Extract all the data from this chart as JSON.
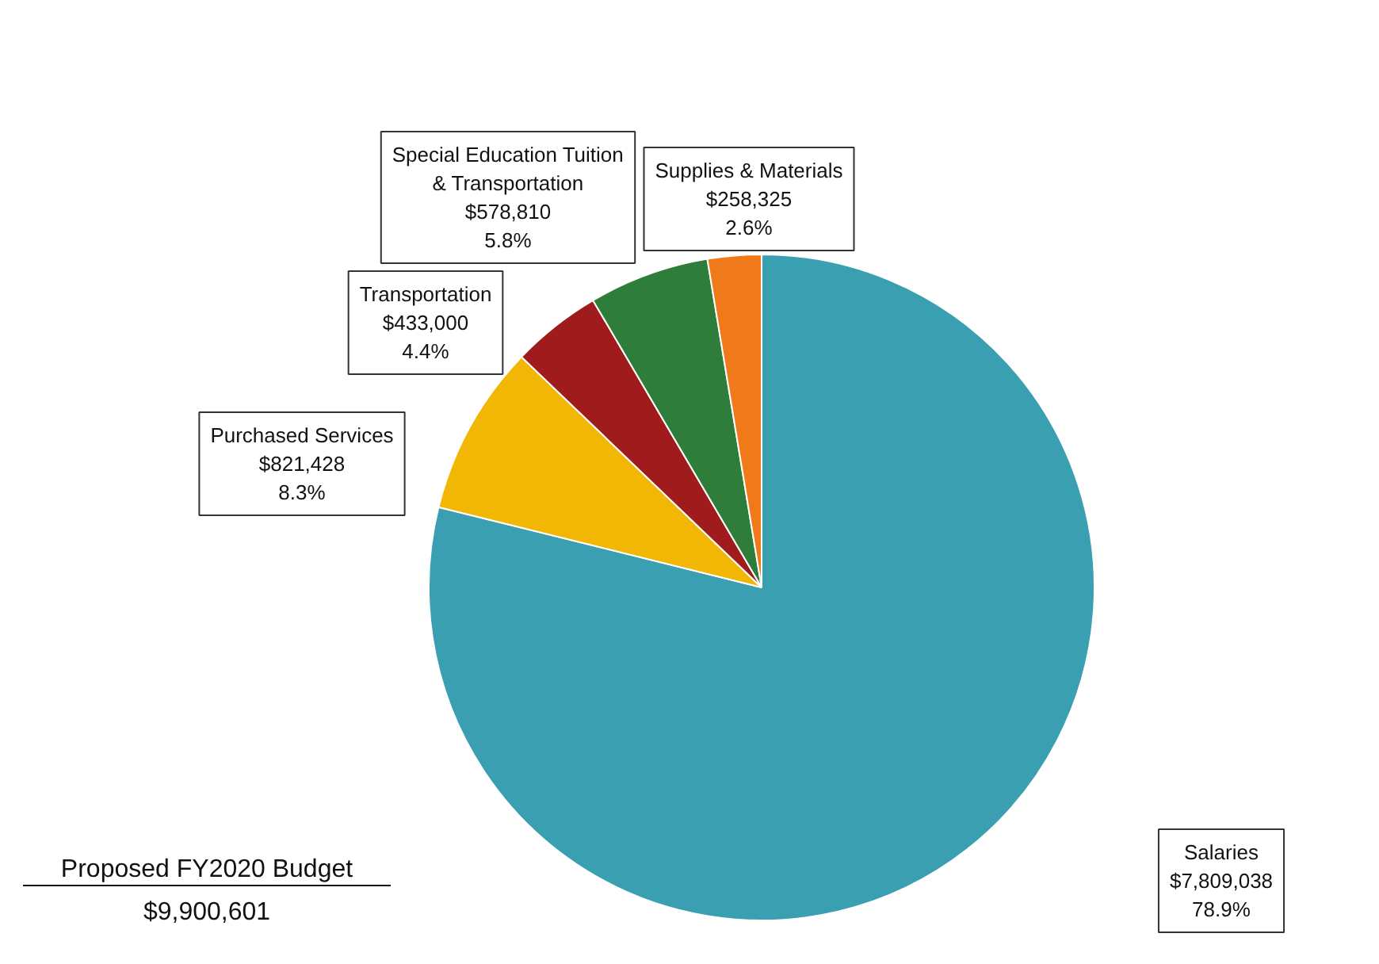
{
  "chart_data": {
    "type": "pie",
    "title": "Proposed FY2020 Budget",
    "subtitle": "$9,900,601",
    "categories": [
      "Salaries",
      "Purchased Services",
      "Transportation",
      "Special Education Tuition\n& Transportation",
      "Supplies & Materials"
    ],
    "values": [
      7809038,
      821428,
      433000,
      578810,
      258325
    ],
    "value_labels": [
      "$7,809,038\n78.9%",
      "$821,428\n8.3%",
      "$433,000\n4.4%",
      "$578,810\n5.8%",
      "$258,325\n2.6%"
    ],
    "colors": [
      "#3a9fb0",
      "#f2b705",
      "#a01c1c",
      "#2e7d3a",
      "#f07a1a"
    ]
  }
}
